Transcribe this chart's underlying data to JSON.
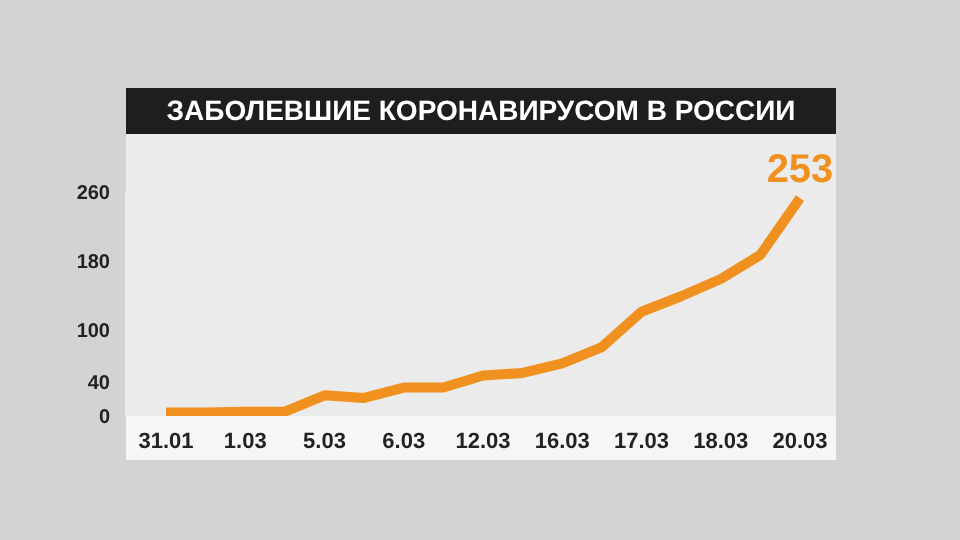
{
  "chart_data": {
    "type": "line",
    "title": "ЗАБОЛЕВШИЕ КОРОНАВИРУСОМ В РОССИИ",
    "categories": [
      "31.01",
      null,
      "1.03",
      null,
      "5.03",
      null,
      "6.03",
      null,
      "12.03",
      null,
      "16.03",
      null,
      "17.03",
      null,
      "18.03",
      null,
      "20.03"
    ],
    "series": [
      {
        "color": "#f0901e",
        "values": [
          4,
          4,
          5,
          5,
          24,
          21,
          33,
          33,
          47,
          50,
          61,
          80,
          121,
          139,
          159,
          187,
          253
        ],
        "value_labels": [
          null,
          null,
          null,
          null,
          null,
          null,
          null,
          null,
          null,
          null,
          null,
          null,
          null,
          null,
          null,
          null,
          "253"
        ]
      }
    ],
    "ylim": [
      0,
      260
    ],
    "yticks": [
      0,
      40,
      100,
      180,
      260
    ],
    "marker": "none",
    "line_style": "solid",
    "grid": false
  }
}
